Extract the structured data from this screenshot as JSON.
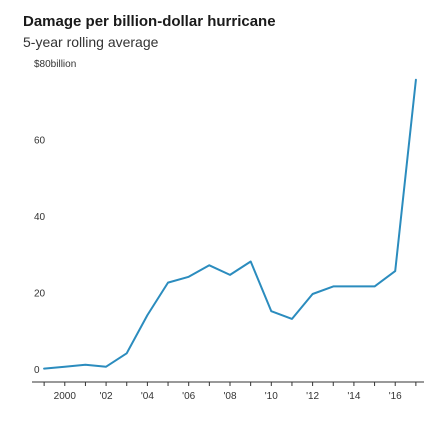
{
  "chart_data": {
    "type": "line",
    "title": "Damage per billion-dollar hurricane",
    "subtitle": "5-year rolling average",
    "xlabel": "",
    "ylabel": "",
    "x_tick_labels": [
      "2000",
      "'02",
      "'04",
      "'06",
      "'08",
      "'10",
      "'12",
      "'14",
      "'16"
    ],
    "x_tick_values": [
      2000,
      2002,
      2004,
      2006,
      2008,
      2010,
      2012,
      2014,
      2016
    ],
    "y_tick_labels": [
      "0",
      "20",
      "40",
      "60",
      "$80billion"
    ],
    "y_tick_values": [
      0,
      20,
      40,
      60,
      80
    ],
    "xlim": [
      1998.8,
      2017.2
    ],
    "ylim": [
      0,
      80
    ],
    "grid": false,
    "colors": {
      "line": "#2b8cbe",
      "axis": "#333333",
      "text": "#333333"
    },
    "series": [
      {
        "x": [
          1999,
          2000,
          2001,
          2002,
          2003,
          2004,
          2005,
          2006,
          2007,
          2008,
          2009,
          2010,
          2011,
          2012,
          2013,
          2014,
          2015,
          2016,
          2017
        ],
        "values": [
          3.5,
          4,
          4.5,
          4,
          7.5,
          17.5,
          26,
          27.5,
          30.5,
          28,
          31.5,
          18.5,
          16.5,
          23,
          25,
          25,
          25,
          29,
          79
        ]
      }
    ]
  }
}
